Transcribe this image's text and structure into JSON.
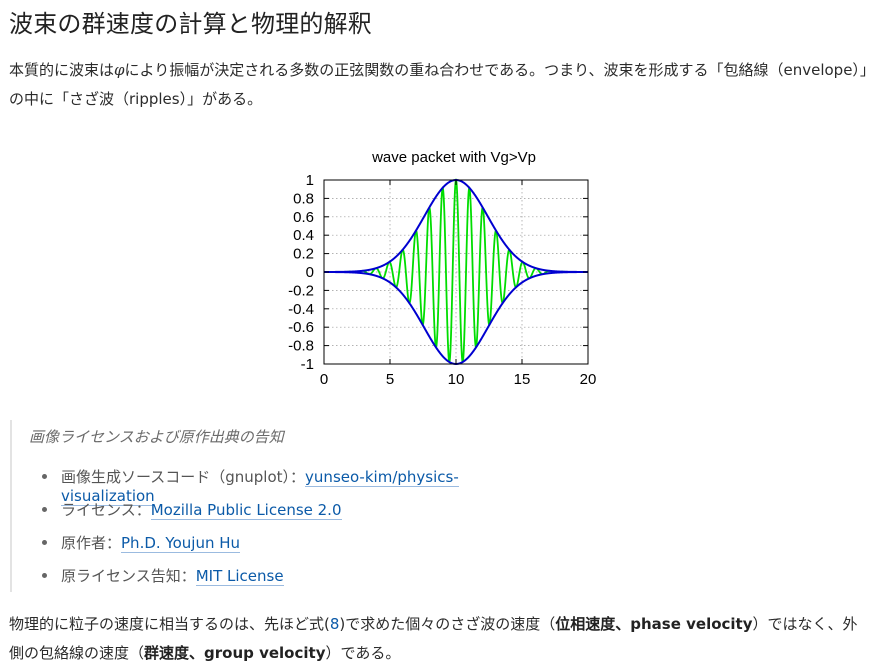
{
  "page": {
    "title": "波束の群速度の計算と物理的解釈"
  },
  "intro": {
    "text_a": "本質的に波束は",
    "phi": "φ",
    "text_b": "により振幅が決定される多数の正弦関数の重ね合わせである。つまり、波束を形成する「包絡線（envelope）」の中に「さざ波（ripples）」がある。"
  },
  "figure": {
    "chart_data": {
      "type": "line",
      "title": "wave packet with Vg>Vp",
      "xlabel": "",
      "ylabel": "",
      "xlim": [
        0,
        20
      ],
      "ylim": [
        -1,
        1
      ],
      "x_ticks": [
        "0",
        "5",
        "10",
        "15",
        "20"
      ],
      "y_ticks": [
        "1",
        "0.8",
        "0.6",
        "0.4",
        "0.2",
        "0",
        "-0.2",
        "-0.4",
        "-0.6",
        "-0.8",
        "-1"
      ],
      "grid": true,
      "envelope_center": 10,
      "envelope_sigma": 2.4,
      "carrier_wavenumber": 6.2,
      "series": [
        {
          "role": "envelope",
          "color": "#0000d0"
        },
        {
          "role": "wave",
          "color": "#00dd00"
        }
      ]
    }
  },
  "notice": {
    "title": "画像ライセンスおよび原作出典の告知",
    "items": [
      {
        "label": "画像生成ソースコード（gnuplot）：",
        "link": "yunseo-kim/physics-visualization"
      },
      {
        "label": "ライセンス：",
        "link": "Mozilla Public License 2.0"
      },
      {
        "label": "原作者：",
        "link": "Ph.D. Youjun Hu"
      },
      {
        "label": "原ライセンス告知：",
        "link": "MIT License"
      }
    ]
  },
  "para2": {
    "t1": "物理的に粒子の速度に相当するのは、先ほど式(",
    "eq": "8",
    "t2": ")で求めた個々のさざ波の速度（",
    "b1": "位相速度、phase velocity",
    "t3": "）ではなく、外側の包絡線の速度（",
    "b2": "群速度、group velocity",
    "t4": "）である。"
  }
}
